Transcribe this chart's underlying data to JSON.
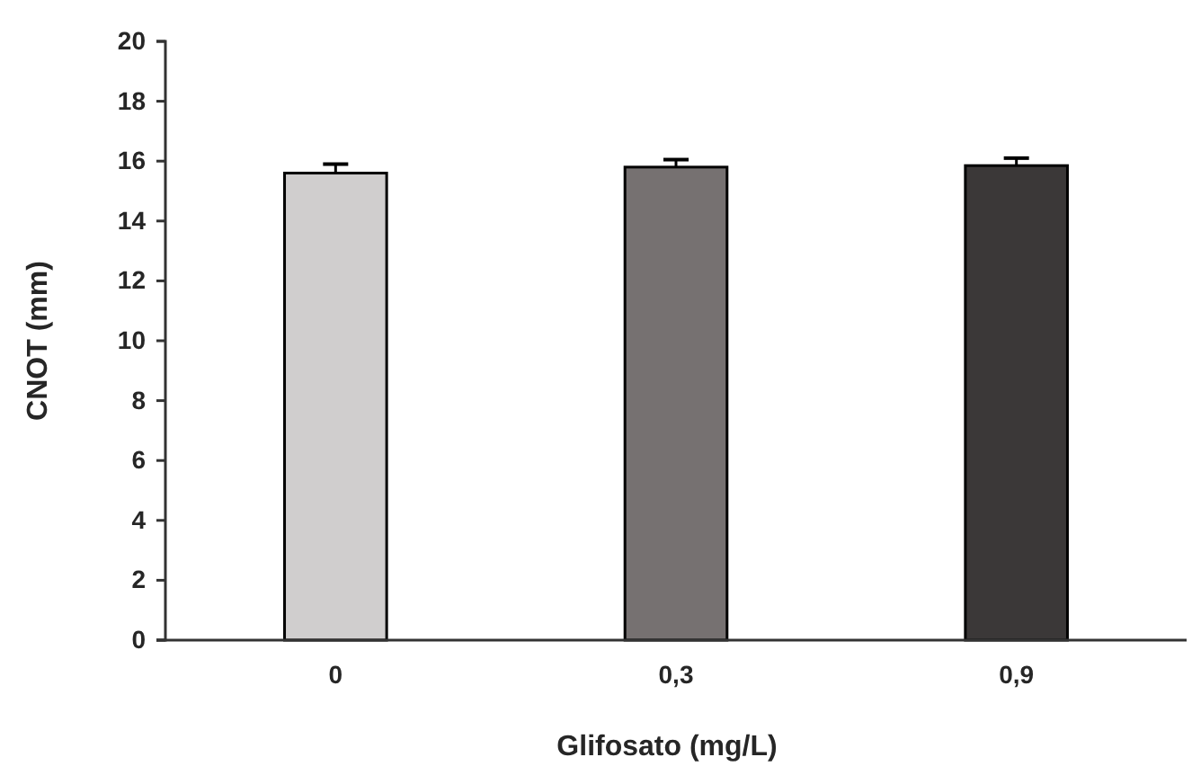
{
  "chart_data": {
    "type": "bar",
    "xlabel": "Glifosato (mg/L)",
    "ylabel": "CNOT (mm)",
    "categories": [
      "0",
      "0,3",
      "0,9"
    ],
    "values": [
      15.6,
      15.8,
      15.85
    ],
    "colors": [
      "#d0cece",
      "#767171",
      "#3b3838"
    ],
    "errors": [
      [
        15.6,
        15.9
      ],
      [
        15.8,
        16.05
      ],
      [
        15.85,
        16.1
      ]
    ],
    "ylim": [
      0,
      20
    ],
    "yticks": [
      0,
      2,
      4,
      6,
      8,
      10,
      12,
      14,
      16,
      18,
      20
    ]
  }
}
